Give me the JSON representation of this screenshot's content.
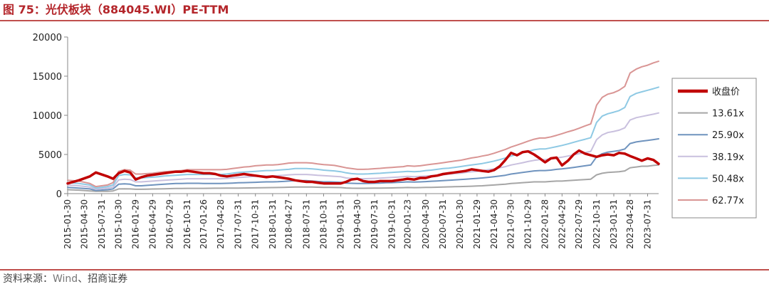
{
  "title": "图 75：光伏板块（884045.WI）PE-TTM",
  "source": {
    "prefix": "资料来源：",
    "vendor": "Wind",
    "suffix": "、招商证券"
  },
  "chart_data": {
    "type": "line",
    "xlabel": "",
    "ylabel": "",
    "ylim": [
      0,
      20000
    ],
    "yticks": [
      0,
      5000,
      10000,
      15000,
      20000
    ],
    "grid": false,
    "legend_position": "right",
    "x_tick_labels": [
      "2015-01-30",
      "2015-04-30",
      "2015-07-31",
      "2015-10-30",
      "2016-01-29",
      "2016-04-29",
      "2016-07-29",
      "2016-10-31",
      "2017-01-26",
      "2017-04-28",
      "2017-07-31",
      "2017-10-31",
      "2018-01-31",
      "2018-04-27",
      "2018-07-31",
      "2018-10-31",
      "2019-01-31",
      "2019-04-30",
      "2019-07-31",
      "2019-10-31",
      "2020-01-23",
      "2020-04-30",
      "2020-07-31",
      "2020-10-30",
      "2021-01-29",
      "2021-04-30",
      "2021-07-30",
      "2021-10-29",
      "2022-01-28",
      "2022-04-29",
      "2022-07-29",
      "2022-10-31",
      "2023-01-31",
      "2023-04-28",
      "2023-07-31"
    ],
    "x": [
      "2015-01-30",
      "2015-03-31",
      "2015-05-29",
      "2015-06-30",
      "2015-08-31",
      "2015-09-30",
      "2015-10-30",
      "2015-11-30",
      "2015-12-31",
      "2016-01-29",
      "2016-02-29",
      "2016-03-31",
      "2016-04-29",
      "2016-05-31",
      "2016-06-30",
      "2016-07-29",
      "2016-08-31",
      "2016-09-30",
      "2016-10-31",
      "2016-11-30",
      "2016-12-30",
      "2017-01-26",
      "2017-02-28",
      "2017-03-31",
      "2017-04-28",
      "2017-05-31",
      "2017-06-30",
      "2017-07-31",
      "2017-08-31",
      "2017-09-29",
      "2017-10-31",
      "2017-11-30",
      "2017-12-29",
      "2018-01-31",
      "2018-02-28",
      "2018-03-30",
      "2018-04-27",
      "2018-05-31",
      "2018-06-29",
      "2018-07-31",
      "2018-08-31",
      "2018-09-28",
      "2018-10-31",
      "2018-11-30",
      "2018-12-28",
      "2019-01-31",
      "2019-02-28",
      "2019-03-29",
      "2019-04-30",
      "2019-05-31",
      "2019-06-28",
      "2019-07-31",
      "2019-08-30",
      "2019-09-30",
      "2019-10-31",
      "2019-11-29",
      "2019-12-31",
      "2020-01-23",
      "2020-02-28",
      "2020-03-31",
      "2020-04-30",
      "2020-05-29",
      "2020-06-30",
      "2020-07-31",
      "2020-08-31",
      "2020-09-30",
      "2020-10-30",
      "2020-11-30",
      "2020-12-31",
      "2021-01-29",
      "2021-02-26",
      "2021-03-31",
      "2021-04-30",
      "2021-05-31",
      "2021-06-30",
      "2021-07-30",
      "2021-08-31",
      "2021-09-30",
      "2021-10-29",
      "2021-11-30",
      "2021-12-31",
      "2022-01-28",
      "2022-02-28",
      "2022-03-31",
      "2022-04-29",
      "2022-05-31",
      "2022-06-30",
      "2022-07-29",
      "2022-08-31",
      "2022-09-30",
      "2022-10-31",
      "2022-11-30",
      "2022-12-30",
      "2023-01-31",
      "2023-02-28",
      "2023-03-31",
      "2023-04-28",
      "2023-05-31",
      "2023-06-30",
      "2023-07-31",
      "2023-08-31",
      "2023-09-28"
    ],
    "series": [
      {
        "name": "收盘价",
        "color": "#c00000",
        "width": 3.5,
        "values": [
          1300,
          1700,
          2200,
          2700,
          2200,
          1900,
          2600,
          2900,
          2700,
          1800,
          2100,
          2300,
          2400,
          2500,
          2600,
          2700,
          2800,
          2800,
          2900,
          2800,
          2700,
          2600,
          2600,
          2500,
          2300,
          2200,
          2300,
          2400,
          2500,
          2400,
          2300,
          2200,
          2100,
          2200,
          2100,
          2000,
          1900,
          1700,
          1600,
          1500,
          1500,
          1400,
          1300,
          1300,
          1300,
          1300,
          1500,
          1800,
          1900,
          1600,
          1500,
          1500,
          1600,
          1600,
          1600,
          1700,
          1800,
          1900,
          1800,
          2000,
          2000,
          2200,
          2300,
          2500,
          2600,
          2700,
          2800,
          2900,
          3100,
          3000,
          2900,
          2800,
          3000,
          3500,
          4300,
          5200,
          4900,
          5300,
          5400,
          5000,
          4500,
          4000,
          4500,
          4600,
          3600,
          4200,
          5000,
          5500,
          5100,
          4900,
          4700,
          4900,
          5000,
          4900,
          5200,
          5100,
          4800,
          4500,
          4200,
          4500,
          4300,
          3800
        ]
      },
      {
        "name": "13.61x",
        "color": "#a6a6a6",
        "width": 2,
        "values": [
          500,
          450,
          350,
          300,
          300,
          350,
          600,
          620,
          600,
          550,
          550,
          570,
          590,
          600,
          620,
          640,
          650,
          660,
          670,
          670,
          670,
          670,
          680,
          690,
          690,
          700,
          700,
          710,
          720,
          730,
          740,
          750,
          760,
          770,
          780,
          800,
          820,
          840,
          850,
          850,
          840,
          820,
          800,
          790,
          780,
          770,
          720,
          690,
          680,
          680,
          690,
          700,
          710,
          720,
          730,
          750,
          760,
          780,
          760,
          770,
          790,
          800,
          820,
          840,
          860,
          880,
          900,
          920,
          950,
          980,
          1000,
          1050,
          1100,
          1150,
          1200,
          1300,
          1350,
          1400,
          1450,
          1500,
          1500,
          1500,
          1550,
          1600,
          1600,
          1650,
          1700,
          1750,
          1800,
          1850,
          2400,
          2600,
          2700,
          2750,
          2800,
          2900,
          3300,
          3400,
          3500,
          3500,
          3600,
          3650
        ]
      },
      {
        "name": "25.90x",
        "color": "#6f93be",
        "width": 2,
        "values": [
          800,
          700,
          600,
          400,
          500,
          600,
          1200,
          1250,
          1200,
          1000,
          1000,
          1050,
          1100,
          1150,
          1200,
          1250,
          1300,
          1300,
          1320,
          1320,
          1320,
          1300,
          1300,
          1300,
          1300,
          1320,
          1350,
          1380,
          1400,
          1420,
          1450,
          1480,
          1500,
          1500,
          1520,
          1550,
          1600,
          1650,
          1650,
          1650,
          1600,
          1550,
          1500,
          1500,
          1480,
          1450,
          1350,
          1320,
          1300,
          1300,
          1310,
          1330,
          1350,
          1380,
          1400,
          1430,
          1460,
          1500,
          1470,
          1500,
          1540,
          1580,
          1620,
          1660,
          1700,
          1750,
          1800,
          1850,
          1900,
          1950,
          2000,
          2080,
          2150,
          2250,
          2350,
          2500,
          2600,
          2700,
          2800,
          2900,
          2950,
          2950,
          3000,
          3100,
          3150,
          3250,
          3350,
          3450,
          3550,
          3650,
          4700,
          5100,
          5300,
          5400,
          5500,
          5700,
          6400,
          6600,
          6700,
          6800,
          6900,
          7000
        ]
      },
      {
        "name": "38.19x",
        "color": "#c9c0de",
        "width": 2,
        "values": [
          1100,
          1000,
          850,
          550,
          700,
          850,
          1750,
          1850,
          1800,
          1500,
          1500,
          1550,
          1600,
          1650,
          1700,
          1750,
          1800,
          1850,
          1900,
          1900,
          1900,
          1900,
          1900,
          1900,
          1900,
          1950,
          2000,
          2050,
          2100,
          2150,
          2200,
          2250,
          2250,
          2250,
          2300,
          2350,
          2400,
          2450,
          2450,
          2450,
          2400,
          2350,
          2300,
          2250,
          2200,
          2150,
          2000,
          1950,
          1900,
          1900,
          1920,
          1950,
          1980,
          2020,
          2060,
          2100,
          2150,
          2200,
          2150,
          2200,
          2250,
          2300,
          2350,
          2400,
          2500,
          2550,
          2600,
          2700,
          2800,
          2850,
          2950,
          3050,
          3150,
          3300,
          3450,
          3650,
          3800,
          3950,
          4100,
          4250,
          4350,
          4350,
          4450,
          4550,
          4650,
          4800,
          4950,
          5100,
          5250,
          5400,
          6900,
          7500,
          7800,
          7950,
          8100,
          8400,
          9400,
          9700,
          9850,
          10000,
          10150,
          10300
        ]
      },
      {
        "name": "50.48x",
        "color": "#8ec9e4",
        "width": 2,
        "values": [
          1400,
          1300,
          1100,
          700,
          900,
          1100,
          2300,
          2450,
          2400,
          2000,
          2000,
          2050,
          2100,
          2150,
          2250,
          2300,
          2350,
          2400,
          2450,
          2450,
          2450,
          2450,
          2450,
          2450,
          2450,
          2500,
          2600,
          2700,
          2750,
          2800,
          2850,
          2900,
          2950,
          2950,
          3000,
          3050,
          3100,
          3200,
          3200,
          3200,
          3150,
          3100,
          3000,
          2950,
          2900,
          2800,
          2650,
          2550,
          2500,
          2500,
          2520,
          2560,
          2600,
          2650,
          2700,
          2750,
          2800,
          2850,
          2800,
          2850,
          2950,
          3000,
          3100,
          3200,
          3250,
          3350,
          3450,
          3550,
          3650,
          3750,
          3850,
          4000,
          4150,
          4350,
          4550,
          4800,
          5000,
          5200,
          5400,
          5600,
          5700,
          5700,
          5850,
          6000,
          6150,
          6350,
          6550,
          6750,
          6950,
          7150,
          9100,
          9900,
          10200,
          10400,
          10600,
          11000,
          12400,
          12800,
          13000,
          13200,
          13400,
          13600
        ]
      },
      {
        "name": "62.77x",
        "color": "#d99594",
        "width": 2,
        "values": [
          1700,
          1600,
          1300,
          900,
          1100,
          1400,
          2850,
          3050,
          3000,
          2500,
          2500,
          2550,
          2600,
          2700,
          2800,
          2850,
          2900,
          2950,
          3050,
          3050,
          3050,
          3050,
          3050,
          3050,
          3050,
          3100,
          3200,
          3300,
          3400,
          3450,
          3550,
          3600,
          3650,
          3650,
          3700,
          3800,
          3900,
          3950,
          3950,
          3950,
          3900,
          3800,
          3700,
          3650,
          3600,
          3450,
          3300,
          3200,
          3100,
          3100,
          3130,
          3180,
          3230,
          3290,
          3350,
          3400,
          3450,
          3550,
          3500,
          3550,
          3650,
          3750,
          3850,
          3950,
          4050,
          4150,
          4250,
          4400,
          4550,
          4650,
          4800,
          4950,
          5150,
          5400,
          5650,
          5950,
          6200,
          6450,
          6700,
          6950,
          7100,
          7100,
          7250,
          7450,
          7650,
          7900,
          8100,
          8350,
          8650,
          8900,
          11300,
          12300,
          12700,
          12900,
          13200,
          13700,
          15400,
          15900,
          16200,
          16400,
          16700,
          16900
        ]
      }
    ]
  }
}
